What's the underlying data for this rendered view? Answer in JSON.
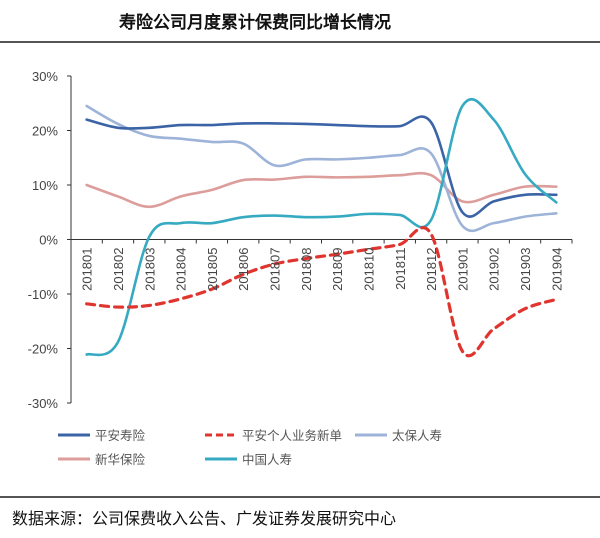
{
  "title": "寿险公司月度累计保费同比增长情况",
  "source": "数据来源：公司保费收入公告、广发证券发展研究中心",
  "chart_data": {
    "type": "line",
    "title": "寿险公司月度累计保费同比增长情况",
    "xlabel": "",
    "ylabel": "",
    "ylim": [
      -30,
      30
    ],
    "yticks": [
      "30%",
      "20%",
      "10%",
      "0%",
      "-10%",
      "-20%",
      "-30%"
    ],
    "ytick_values": [
      30,
      20,
      10,
      0,
      -10,
      -20,
      -30
    ],
    "grid": false,
    "legend": "bottom",
    "categories": [
      "201801",
      "201802",
      "201803",
      "201804",
      "201805",
      "201806",
      "201807",
      "201808",
      "201809",
      "201810",
      "201811",
      "201812",
      "201901",
      "201902",
      "201903",
      "201904"
    ],
    "series": [
      {
        "name": "平安寿险",
        "color": "#3b64a6",
        "dash": false,
        "values": [
          22,
          20.5,
          20.5,
          21,
          21,
          21.3,
          21.3,
          21.2,
          21,
          20.8,
          20.8,
          21.5,
          5,
          7,
          8.2,
          8.2
        ]
      },
      {
        "name": "平安个人业务新单",
        "color": "#e0352f",
        "dash": true,
        "values": [
          -11.8,
          -12.4,
          -12.1,
          -10.9,
          -9.1,
          -6.4,
          -4.5,
          -3.5,
          -2.7,
          -1.8,
          -0.9,
          1,
          -20.5,
          -16.4,
          -12.7,
          -11
        ]
      },
      {
        "name": "太保人寿",
        "color": "#9db4d8",
        "dash": false,
        "values": [
          24.5,
          21.2,
          19,
          18.5,
          17.9,
          17.6,
          13.6,
          14.7,
          14.7,
          15,
          15.5,
          15.8,
          2.5,
          3,
          4.2,
          4.8
        ]
      },
      {
        "name": "新华保险",
        "color": "#dc9d9b",
        "dash": false,
        "values": [
          10,
          7.9,
          6,
          7.9,
          9.1,
          10.9,
          11,
          11.5,
          11.4,
          11.5,
          11.8,
          11.8,
          7,
          8.2,
          9.7,
          9.7
        ]
      },
      {
        "name": "中国人寿",
        "color": "#36aac1",
        "dash": false,
        "values": [
          -21.1,
          -18.8,
          0.5,
          3,
          3,
          4.1,
          4.4,
          4.1,
          4.2,
          4.7,
          4.5,
          3.6,
          24.5,
          22,
          12,
          6.8
        ]
      }
    ]
  }
}
